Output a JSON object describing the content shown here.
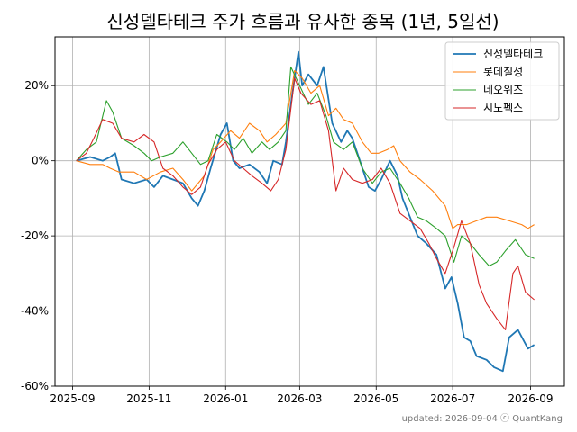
{
  "chart_data": {
    "type": "line",
    "title": "신성델타테크 주가 흐름과 유사한 종목 (1년, 5일선)",
    "xlabel": "",
    "ylabel": "",
    "x_ticks": [
      "2025-09",
      "2025-11",
      "2026-01",
      "2026-03",
      "2026-05",
      "2026-07",
      "2026-09"
    ],
    "y_ticks": [
      "-60%",
      "-40%",
      "-20%",
      "0%",
      "20%"
    ],
    "ylim": [
      -60,
      33
    ],
    "xlim": [
      "2025-08-18",
      "2026-09-28"
    ],
    "grid": true,
    "legend_position": "top-right",
    "footer": "updated: 2026-09-04 ⓒ QuantKang",
    "series": [
      {
        "name": "신성델타테크",
        "color": "#1f77b4",
        "points": [
          [
            "2025-09-04",
            0
          ],
          [
            "2025-09-15",
            1
          ],
          [
            "2025-09-25",
            0
          ],
          [
            "2025-10-01",
            1
          ],
          [
            "2025-10-05",
            2
          ],
          [
            "2025-10-10",
            -5
          ],
          [
            "2025-10-20",
            -6
          ],
          [
            "2025-10-30",
            -5
          ],
          [
            "2025-11-05",
            -7
          ],
          [
            "2025-11-12",
            -4
          ],
          [
            "2025-11-20",
            -5
          ],
          [
            "2025-11-28",
            -6
          ],
          [
            "2025-12-05",
            -10
          ],
          [
            "2025-12-10",
            -12
          ],
          [
            "2025-12-15",
            -8
          ],
          [
            "2025-12-20",
            -2
          ],
          [
            "2025-12-28",
            7
          ],
          [
            "2026-01-02",
            10
          ],
          [
            "2026-01-07",
            0
          ],
          [
            "2026-01-12",
            -2
          ],
          [
            "2026-01-20",
            -1
          ],
          [
            "2026-01-28",
            -3
          ],
          [
            "2026-02-03",
            -6
          ],
          [
            "2026-02-08",
            0
          ],
          [
            "2026-02-15",
            -1
          ],
          [
            "2026-02-18",
            5
          ],
          [
            "2026-02-22",
            15
          ],
          [
            "2026-02-28",
            29
          ],
          [
            "2026-03-03",
            20
          ],
          [
            "2026-03-08",
            23
          ],
          [
            "2026-03-15",
            20
          ],
          [
            "2026-03-20",
            25
          ],
          [
            "2026-03-27",
            10
          ],
          [
            "2026-04-03",
            5
          ],
          [
            "2026-04-08",
            8
          ],
          [
            "2026-04-12",
            6
          ],
          [
            "2026-04-18",
            0
          ],
          [
            "2026-04-25",
            -7
          ],
          [
            "2026-04-30",
            -8
          ],
          [
            "2026-05-05",
            -5
          ],
          [
            "2026-05-12",
            0
          ],
          [
            "2026-05-18",
            -4
          ],
          [
            "2026-05-22",
            -10
          ],
          [
            "2026-05-28",
            -15
          ],
          [
            "2026-06-03",
            -20
          ],
          [
            "2026-06-10",
            -22
          ],
          [
            "2026-06-18",
            -25
          ],
          [
            "2026-06-25",
            -34
          ],
          [
            "2026-06-30",
            -31
          ],
          [
            "2026-07-05",
            -38
          ],
          [
            "2026-07-10",
            -47
          ],
          [
            "2026-07-15",
            -48
          ],
          [
            "2026-07-20",
            -52
          ],
          [
            "2026-07-28",
            -53
          ],
          [
            "2026-08-03",
            -55
          ],
          [
            "2026-08-10",
            -56
          ],
          [
            "2026-08-15",
            -47
          ],
          [
            "2026-08-22",
            -45
          ],
          [
            "2026-08-30",
            -50
          ],
          [
            "2026-09-04",
            -49
          ]
        ]
      },
      {
        "name": "롯데칠성",
        "color": "#ff7f0e",
        "points": [
          [
            "2025-09-04",
            0
          ],
          [
            "2025-09-15",
            -1
          ],
          [
            "2025-09-25",
            -1
          ],
          [
            "2025-10-01",
            -2
          ],
          [
            "2025-10-08",
            -3
          ],
          [
            "2025-10-20",
            -3
          ],
          [
            "2025-10-30",
            -5
          ],
          [
            "2025-11-10",
            -3
          ],
          [
            "2025-11-20",
            -2
          ],
          [
            "2025-11-28",
            -5
          ],
          [
            "2025-12-05",
            -8
          ],
          [
            "2025-12-15",
            -4
          ],
          [
            "2025-12-22",
            3
          ],
          [
            "2025-12-28",
            5
          ],
          [
            "2026-01-05",
            8
          ],
          [
            "2026-01-12",
            6
          ],
          [
            "2026-01-20",
            10
          ],
          [
            "2026-01-28",
            8
          ],
          [
            "2026-02-03",
            5
          ],
          [
            "2026-02-10",
            7
          ],
          [
            "2026-02-18",
            10
          ],
          [
            "2026-02-25",
            24
          ],
          [
            "2026-03-03",
            22
          ],
          [
            "2026-03-10",
            18
          ],
          [
            "2026-03-17",
            20
          ],
          [
            "2026-03-24",
            12
          ],
          [
            "2026-03-30",
            14
          ],
          [
            "2026-04-05",
            11
          ],
          [
            "2026-04-12",
            10
          ],
          [
            "2026-04-20",
            5
          ],
          [
            "2026-04-27",
            2
          ],
          [
            "2026-05-03",
            2
          ],
          [
            "2026-05-10",
            3
          ],
          [
            "2026-05-15",
            4
          ],
          [
            "2026-05-20",
            0
          ],
          [
            "2026-05-28",
            -3
          ],
          [
            "2026-06-05",
            -5
          ],
          [
            "2026-06-15",
            -8
          ],
          [
            "2026-06-25",
            -12
          ],
          [
            "2026-07-01",
            -18
          ],
          [
            "2026-07-05",
            -17
          ],
          [
            "2026-07-12",
            -17
          ],
          [
            "2026-07-20",
            -16
          ],
          [
            "2026-07-28",
            -15
          ],
          [
            "2026-08-05",
            -15
          ],
          [
            "2026-08-15",
            -16
          ],
          [
            "2026-08-25",
            -17
          ],
          [
            "2026-08-30",
            -18
          ],
          [
            "2026-09-04",
            -17
          ]
        ]
      },
      {
        "name": "네오위즈",
        "color": "#2ca02c",
        "points": [
          [
            "2025-09-04",
            0
          ],
          [
            "2025-09-12",
            3
          ],
          [
            "2025-09-20",
            5
          ],
          [
            "2025-09-28",
            16
          ],
          [
            "2025-10-03",
            13
          ],
          [
            "2025-10-10",
            6
          ],
          [
            "2025-10-20",
            4
          ],
          [
            "2025-10-28",
            2
          ],
          [
            "2025-11-03",
            0
          ],
          [
            "2025-11-10",
            1
          ],
          [
            "2025-11-20",
            2
          ],
          [
            "2025-11-28",
            5
          ],
          [
            "2025-12-05",
            2
          ],
          [
            "2025-12-12",
            -1
          ],
          [
            "2025-12-18",
            0
          ],
          [
            "2025-12-25",
            7
          ],
          [
            "2026-01-02",
            5
          ],
          [
            "2026-01-08",
            3
          ],
          [
            "2026-01-15",
            6
          ],
          [
            "2026-01-22",
            2
          ],
          [
            "2026-01-30",
            5
          ],
          [
            "2026-02-05",
            3
          ],
          [
            "2026-02-12",
            5
          ],
          [
            "2026-02-18",
            8
          ],
          [
            "2026-02-22",
            25
          ],
          [
            "2026-03-01",
            20
          ],
          [
            "2026-03-08",
            15
          ],
          [
            "2026-03-15",
            18
          ],
          [
            "2026-03-22",
            12
          ],
          [
            "2026-03-28",
            5
          ],
          [
            "2026-04-05",
            3
          ],
          [
            "2026-04-12",
            5
          ],
          [
            "2026-04-20",
            -2
          ],
          [
            "2026-04-28",
            -6
          ],
          [
            "2026-05-05",
            -3
          ],
          [
            "2026-05-12",
            -2
          ],
          [
            "2026-05-20",
            -6
          ],
          [
            "2026-05-27",
            -10
          ],
          [
            "2026-06-03",
            -15
          ],
          [
            "2026-06-10",
            -16
          ],
          [
            "2026-06-18",
            -18
          ],
          [
            "2026-06-25",
            -20
          ],
          [
            "2026-07-02",
            -27
          ],
          [
            "2026-07-08",
            -20
          ],
          [
            "2026-07-15",
            -22
          ],
          [
            "2026-07-22",
            -25
          ],
          [
            "2026-07-30",
            -28
          ],
          [
            "2026-08-05",
            -27
          ],
          [
            "2026-08-12",
            -24
          ],
          [
            "2026-08-20",
            -21
          ],
          [
            "2026-08-28",
            -25
          ],
          [
            "2026-09-04",
            -26
          ]
        ]
      },
      {
        "name": "시노펙스",
        "color": "#d62728",
        "points": [
          [
            "2025-09-04",
            0
          ],
          [
            "2025-09-12",
            2
          ],
          [
            "2025-09-18",
            6
          ],
          [
            "2025-09-25",
            11
          ],
          [
            "2025-10-03",
            10
          ],
          [
            "2025-10-10",
            6
          ],
          [
            "2025-10-20",
            5
          ],
          [
            "2025-10-28",
            7
          ],
          [
            "2025-11-05",
            5
          ],
          [
            "2025-11-12",
            -2
          ],
          [
            "2025-11-20",
            -4
          ],
          [
            "2025-11-28",
            -7
          ],
          [
            "2025-12-05",
            -9
          ],
          [
            "2025-12-12",
            -7
          ],
          [
            "2025-12-18",
            -1
          ],
          [
            "2025-12-25",
            3
          ],
          [
            "2026-01-01",
            5
          ],
          [
            "2026-01-08",
            0
          ],
          [
            "2026-01-15",
            -2
          ],
          [
            "2026-01-22",
            -4
          ],
          [
            "2026-01-30",
            -6
          ],
          [
            "2026-02-06",
            -8
          ],
          [
            "2026-02-12",
            -5
          ],
          [
            "2026-02-18",
            3
          ],
          [
            "2026-02-25",
            22
          ],
          [
            "2026-03-02",
            18
          ],
          [
            "2026-03-10",
            15
          ],
          [
            "2026-03-17",
            16
          ],
          [
            "2026-03-24",
            8
          ],
          [
            "2026-03-30",
            -8
          ],
          [
            "2026-04-05",
            -2
          ],
          [
            "2026-04-12",
            -5
          ],
          [
            "2026-04-20",
            -6
          ],
          [
            "2026-04-28",
            -5
          ],
          [
            "2026-05-05",
            -2
          ],
          [
            "2026-05-12",
            -6
          ],
          [
            "2026-05-20",
            -14
          ],
          [
            "2026-05-28",
            -16
          ],
          [
            "2026-06-05",
            -18
          ],
          [
            "2026-06-12",
            -22
          ],
          [
            "2026-06-18",
            -26
          ],
          [
            "2026-06-25",
            -30
          ],
          [
            "2026-07-02",
            -23
          ],
          [
            "2026-07-08",
            -16
          ],
          [
            "2026-07-15",
            -22
          ],
          [
            "2026-07-22",
            -33
          ],
          [
            "2026-07-28",
            -38
          ],
          [
            "2026-08-05",
            -42
          ],
          [
            "2026-08-12",
            -45
          ],
          [
            "2026-08-18",
            -30
          ],
          [
            "2026-08-22",
            -28
          ],
          [
            "2026-08-28",
            -35
          ],
          [
            "2026-09-04",
            -37
          ]
        ]
      }
    ]
  }
}
